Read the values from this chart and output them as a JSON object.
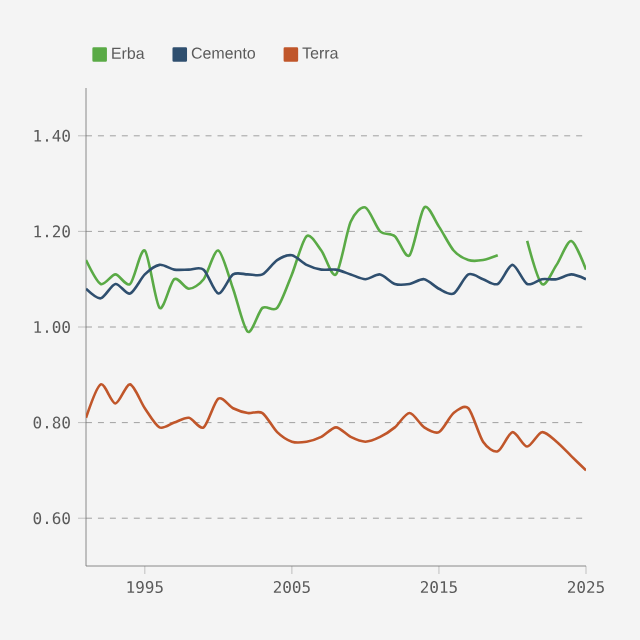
{
  "chart_data": {
    "type": "line",
    "x": [
      1991,
      1992,
      1993,
      1994,
      1995,
      1996,
      1997,
      1998,
      1999,
      2000,
      2001,
      2002,
      2003,
      2004,
      2005,
      2006,
      2007,
      2008,
      2009,
      2010,
      2011,
      2012,
      2013,
      2014,
      2015,
      2016,
      2017,
      2018,
      2019,
      2020,
      2021,
      2022,
      2023,
      2024,
      2025
    ],
    "series": [
      {
        "name": "Erba",
        "color": "#5aaa46",
        "values": [
          1.14,
          1.09,
          1.11,
          1.09,
          1.16,
          1.04,
          1.1,
          1.08,
          1.1,
          1.16,
          1.08,
          0.99,
          1.04,
          1.04,
          1.11,
          1.19,
          1.16,
          1.11,
          1.22,
          1.25,
          1.2,
          1.19,
          1.15,
          1.25,
          1.21,
          1.16,
          1.14,
          1.14,
          1.15,
          null,
          1.18,
          1.09,
          1.13,
          1.18,
          1.12
        ]
      },
      {
        "name": "Cemento",
        "color": "#2f4f6f",
        "values": [
          1.08,
          1.06,
          1.09,
          1.07,
          1.11,
          1.13,
          1.12,
          1.12,
          1.12,
          1.07,
          1.11,
          1.11,
          1.11,
          1.14,
          1.15,
          1.13,
          1.12,
          1.12,
          1.11,
          1.1,
          1.11,
          1.09,
          1.09,
          1.1,
          1.08,
          1.07,
          1.11,
          1.1,
          1.09,
          1.13,
          1.09,
          1.1,
          1.1,
          1.11,
          1.1
        ]
      },
      {
        "name": "Terra",
        "color": "#c0562a",
        "values": [
          0.81,
          0.88,
          0.84,
          0.88,
          0.83,
          0.79,
          0.8,
          0.81,
          0.79,
          0.85,
          0.83,
          0.82,
          0.82,
          0.78,
          0.76,
          0.76,
          0.77,
          0.79,
          0.77,
          0.76,
          0.77,
          0.79,
          0.82,
          0.79,
          0.78,
          0.82,
          0.83,
          0.76,
          0.74,
          0.78,
          0.75,
          0.78,
          0.76,
          0.73,
          0.7
        ]
      }
    ],
    "xlim": [
      1991,
      2025
    ],
    "ylim": [
      0.5,
      1.5
    ],
    "xticks": [
      1995,
      2005,
      2015,
      2025
    ],
    "yticks": [
      {
        "value": 0.6,
        "label": "0.60"
      },
      {
        "value": 0.8,
        "label": "0.80"
      },
      {
        "value": 1.0,
        "label": "1.00"
      },
      {
        "value": 1.2,
        "label": "1.20"
      },
      {
        "value": 1.4,
        "label": "1.40"
      }
    ],
    "grid": "y",
    "legend": "top left"
  }
}
